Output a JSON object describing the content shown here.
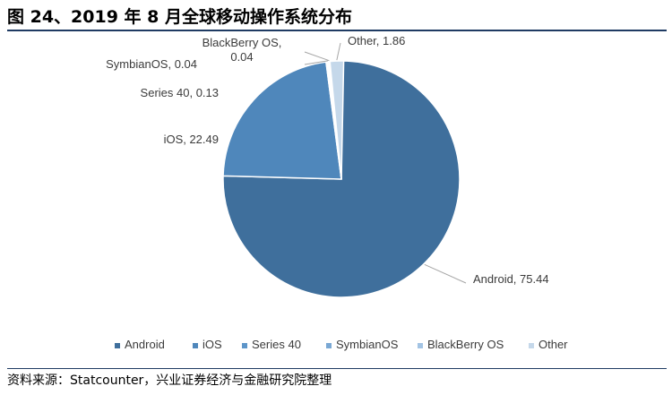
{
  "figure": {
    "title": "图 24、2019 年 8 月全球移动操作系统分布",
    "source": "资料来源：Statcounter，兴业证券经济与金融研究院整理"
  },
  "chart_data": {
    "type": "pie",
    "slices": [
      {
        "name": "Android",
        "value": 75.44,
        "color": "#3f6f9c",
        "label": "Android, 75.44"
      },
      {
        "name": "iOS",
        "value": 22.49,
        "color": "#4f87bb",
        "label": "iOS, 22.49"
      },
      {
        "name": "Series 40",
        "value": 0.13,
        "color": "#5d95c9",
        "label": "Series 40, 0.13"
      },
      {
        "name": "SymbianOS",
        "value": 0.04,
        "color": "#7aa8d4",
        "label": "SymbianOS, 0.04"
      },
      {
        "name": "BlackBerry OS",
        "value": 0.04,
        "color": "#a3c4e4",
        "label_lines": [
          "BlackBerry OS,",
          "0.04"
        ]
      },
      {
        "name": "Other",
        "value": 1.86,
        "color": "#c5d8ea",
        "label": "Other, 1.86"
      }
    ],
    "legend_position": "bottom"
  }
}
